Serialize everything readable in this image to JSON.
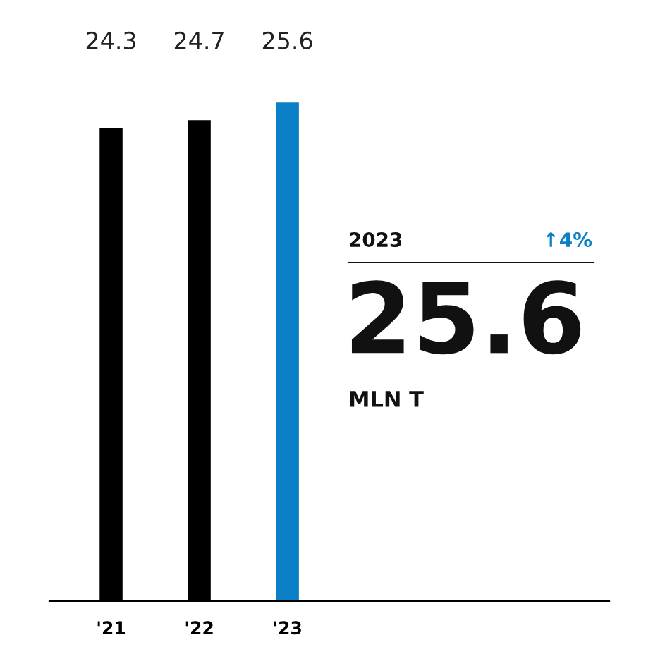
{
  "chart_data": {
    "type": "bar",
    "categories": [
      "'21",
      "'22",
      "'23"
    ],
    "values": [
      24.3,
      24.7,
      25.6
    ],
    "colors": [
      "#000000",
      "#000000",
      "#0a7fc6"
    ],
    "data_labels": true,
    "annotations": [
      "2023",
      "↑4%",
      "25.6",
      "MLN T"
    ],
    "grid": false,
    "legend": false
  }
}
